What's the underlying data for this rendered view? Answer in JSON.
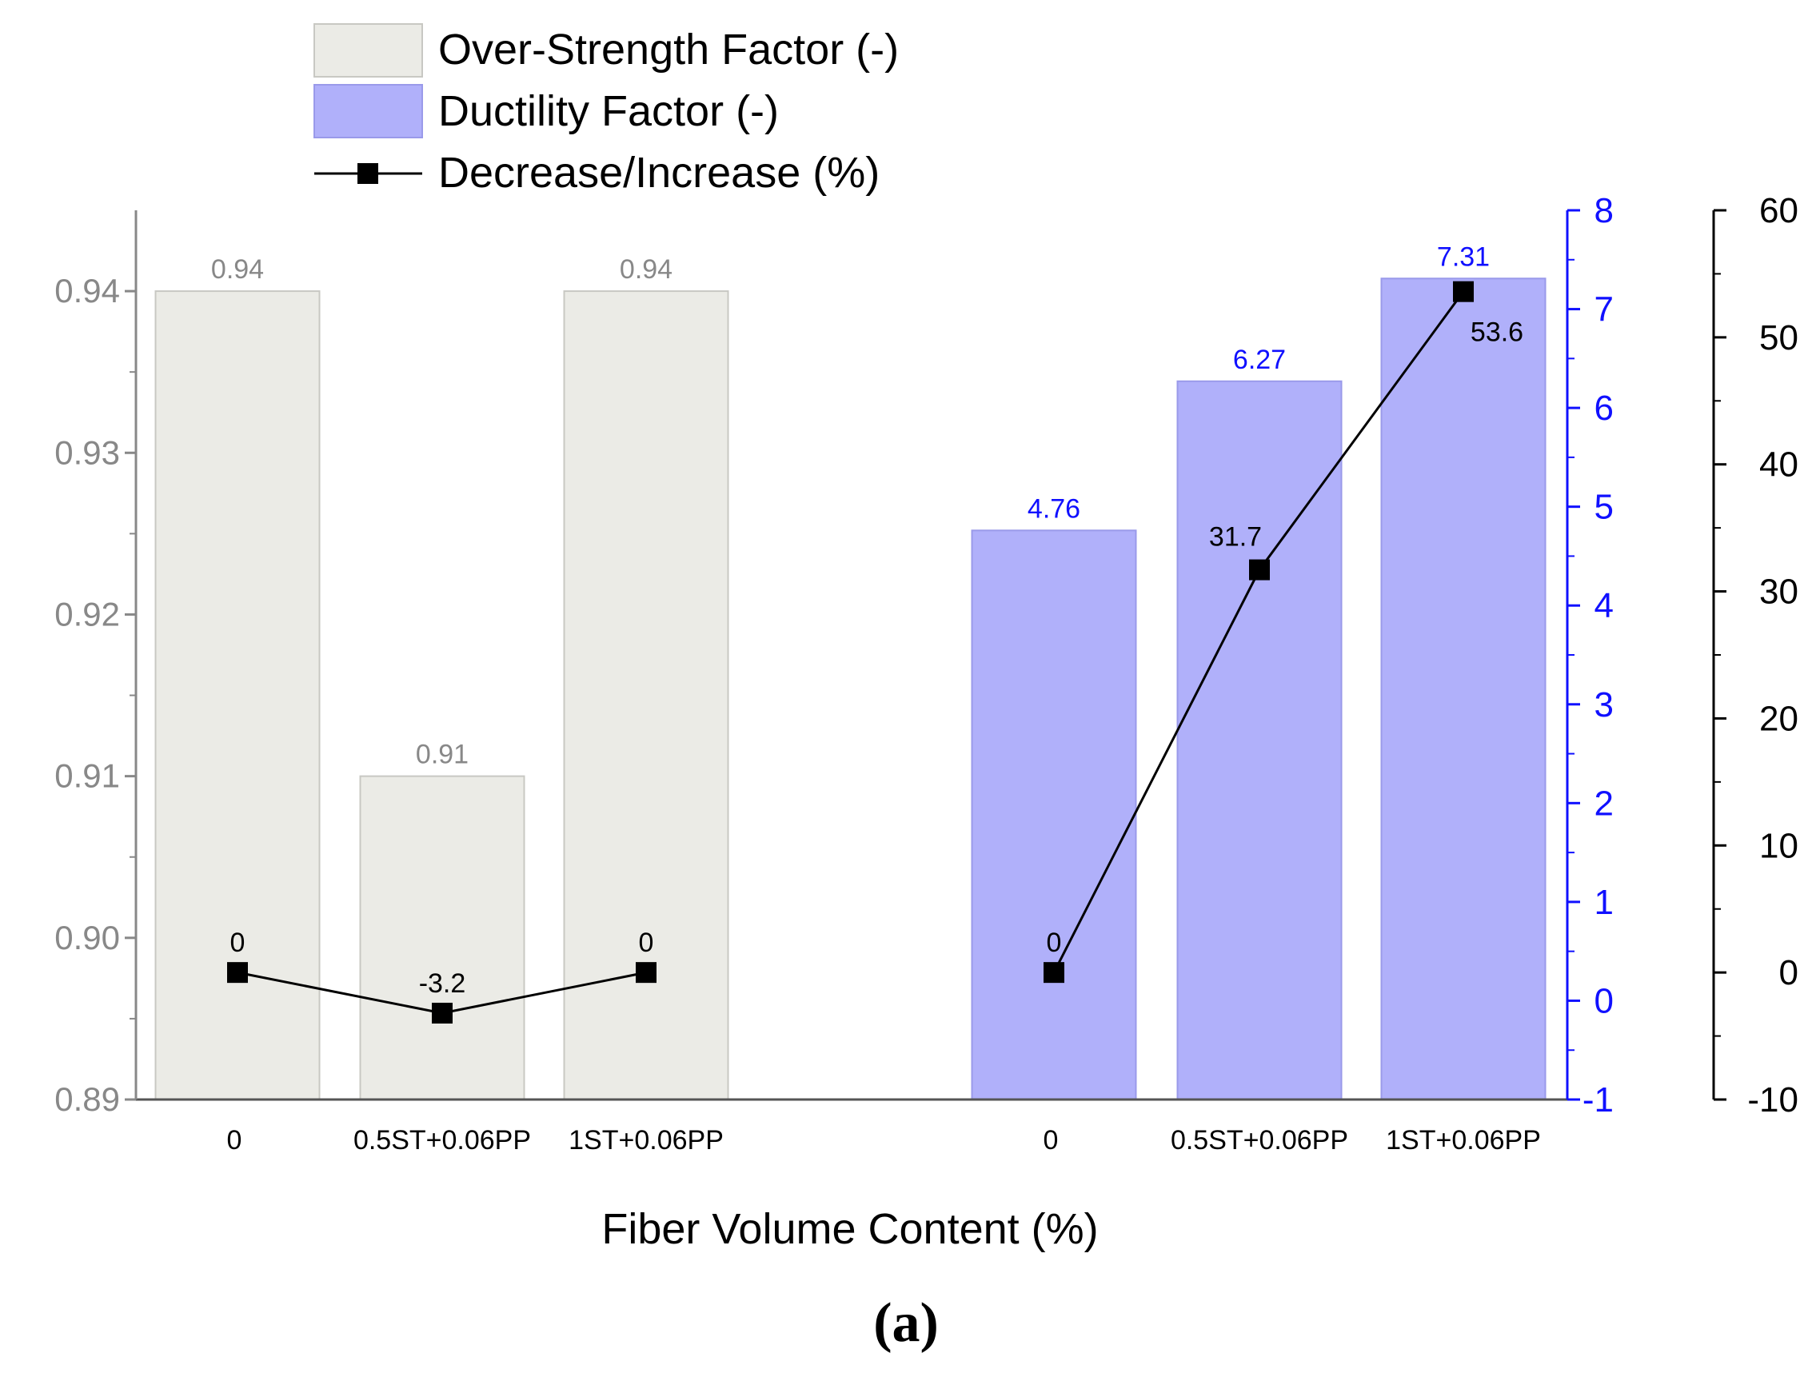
{
  "chart_data": {
    "type": "bar",
    "xlabel": "Fiber Volume Content (%)",
    "categories": [
      "0",
      "0.5ST+0.06PP",
      "1ST+0.06PP"
    ],
    "legend": {
      "placement": "top-left",
      "entries": [
        "Over-Strength Factor (-)",
        "Ductility Factor (-)",
        "Decrease/Increase (%)"
      ]
    },
    "series": [
      {
        "name": "Over-Strength Factor (-)",
        "kind": "bar",
        "axis": "left",
        "group": 1,
        "values": [
          0.94,
          0.91,
          0.94
        ],
        "labels": [
          "0.94",
          "0.91",
          "0.94"
        ],
        "color": "#ebebe6"
      },
      {
        "name": "Ductility Factor (-)",
        "kind": "bar",
        "axis": "right-inner",
        "group": 2,
        "values": [
          4.76,
          6.27,
          7.31
        ],
        "labels": [
          "4.76",
          "6.27",
          "7.31"
        ],
        "color": "#b0b0fa"
      },
      {
        "name": "Decrease/Increase (%)",
        "kind": "line",
        "axis": "right-outer",
        "segments": [
          {
            "group": 1,
            "values": [
              0,
              -3.2,
              0
            ],
            "labels": [
              "0",
              "-3.2",
              "0"
            ]
          },
          {
            "group": 2,
            "values": [
              0,
              31.7,
              53.6
            ],
            "labels": [
              "0",
              "31.7",
              "53.6"
            ]
          }
        ],
        "color": "#000000"
      }
    ],
    "axes": {
      "left": {
        "ylim": [
          0.89,
          0.945
        ],
        "ticks": [
          "0.89",
          "0.90",
          "0.91",
          "0.92",
          "0.93",
          "0.94"
        ],
        "color": "#888888"
      },
      "right_inner": {
        "ylim": [
          -1,
          8
        ],
        "ticks": [
          "-1",
          "0",
          "1",
          "2",
          "3",
          "4",
          "5",
          "6",
          "7",
          "8"
        ],
        "color": "#1010ff"
      },
      "right_outer": {
        "ylim": [
          -10,
          60
        ],
        "ticks": [
          "-10",
          "0",
          "10",
          "20",
          "30",
          "40",
          "50",
          "60"
        ],
        "color": "#000000"
      }
    },
    "grid": false
  },
  "caption": "(a)"
}
